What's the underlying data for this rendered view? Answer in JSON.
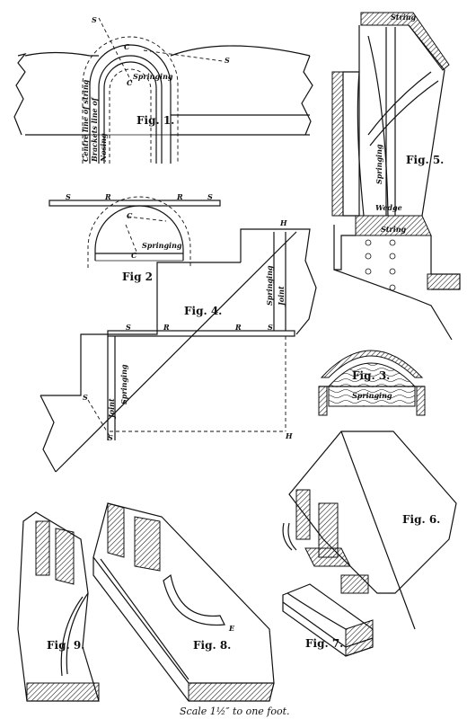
{
  "figures": {
    "fig1": {
      "label": "Fig. 1.",
      "springing": "Springing",
      "centre_line": "Centre line of string",
      "brackets_line": "Brackets line of",
      "nosing_line": "Nosing",
      "s": "S",
      "c": "C"
    },
    "fig2": {
      "label": "Fig 2",
      "springing": "Springing",
      "s": "S",
      "r": "R",
      "c": "C"
    },
    "fig3": {
      "label": "Fig. 3.",
      "springing": "Springing"
    },
    "fig4": {
      "label": "Fig. 4.",
      "springing": "Springing",
      "joint": "Joint",
      "s": "S",
      "r": "R",
      "h": "H"
    },
    "fig5": {
      "label": "Fig. 5.",
      "string_top": "String",
      "springing": "Springing",
      "wedge": "Wedge",
      "string_bottom": "String"
    },
    "fig6": {
      "label": "Fig. 6."
    },
    "fig7": {
      "label": "Fig. 7."
    },
    "fig8": {
      "label": "Fig. 8.",
      "e": "E"
    },
    "fig9": {
      "label": "Fig. 9."
    }
  },
  "caption": "Scale 1½″ to one foot."
}
